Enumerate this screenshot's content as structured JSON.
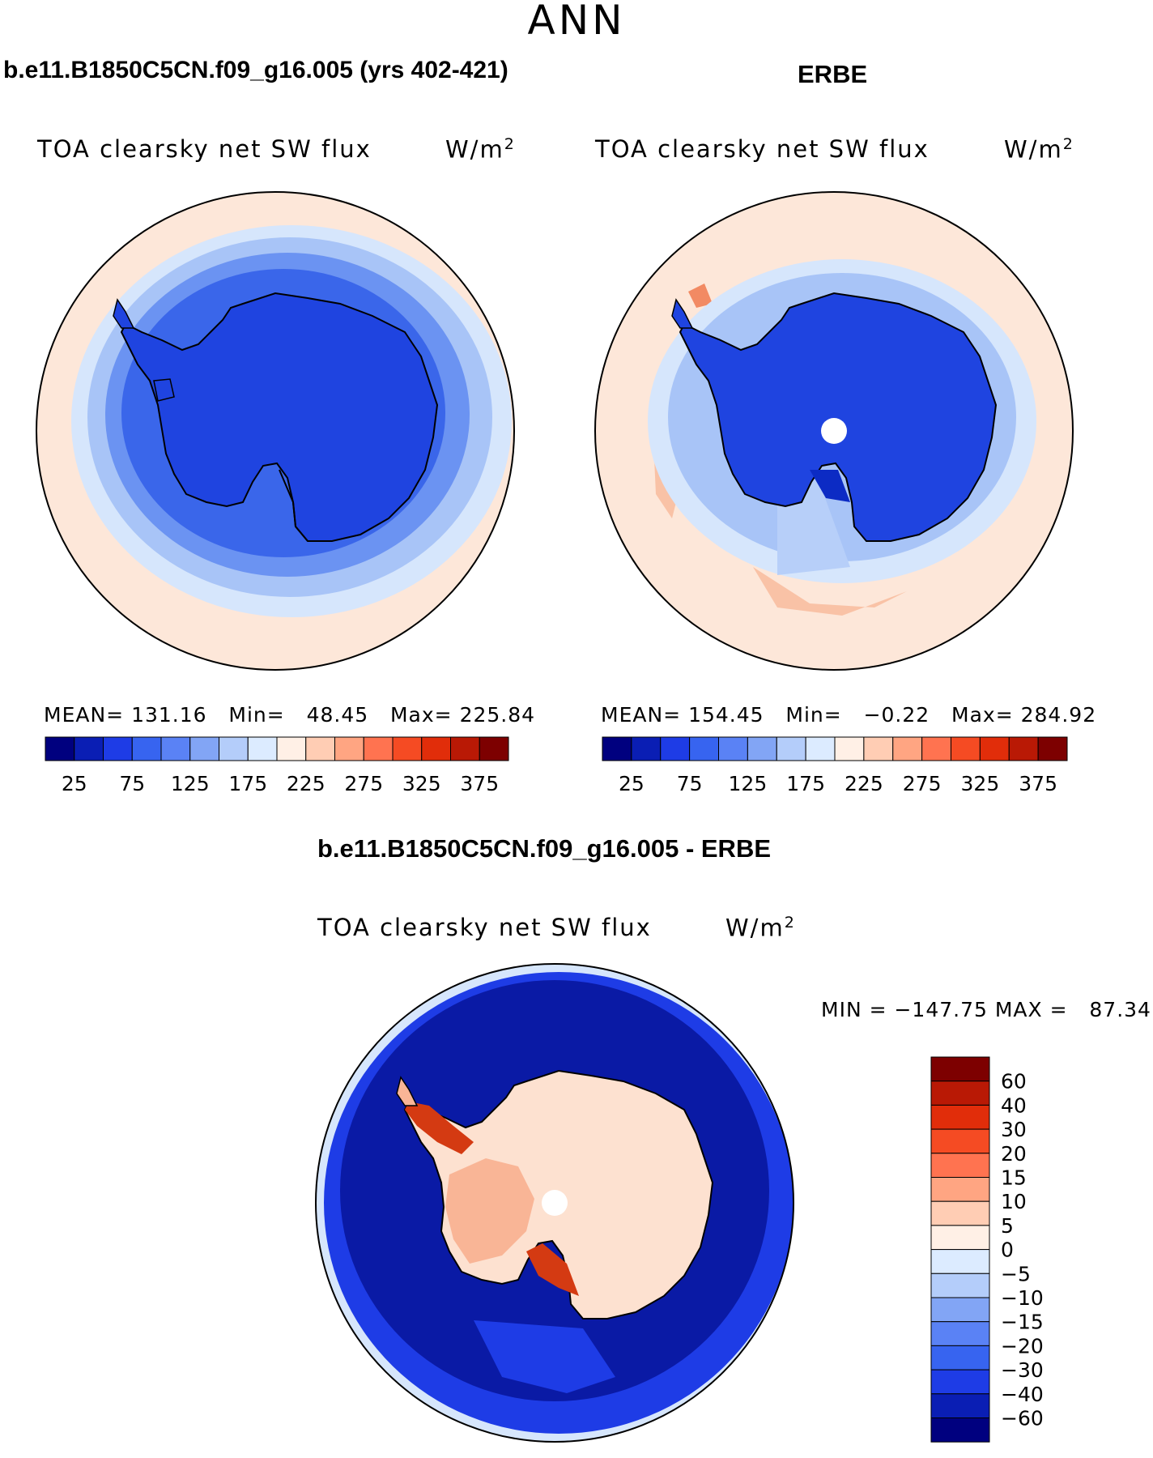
{
  "page_title": "ANN",
  "panels": [
    {
      "case_title": "b.e11.B1850C5CN.f09_g16.005 (yrs 402-421)",
      "variable": "TOA clearsky net SW flux",
      "units": "W/m",
      "units_exp": "2",
      "stats": {
        "mean_label": "MEAN=",
        "mean": "131.16",
        "min_label": "Min=",
        "min": "48.45",
        "max_label": "Max=",
        "max": "225.84"
      }
    },
    {
      "case_title": "ERBE",
      "variable": "TOA clearsky net SW flux",
      "units": "W/m",
      "units_exp": "2",
      "stats": {
        "mean_label": "MEAN=",
        "mean": "154.45",
        "min_label": "Min=",
        "min": "−0.22",
        "max_label": "Max=",
        "max": "284.92"
      }
    }
  ],
  "diff_panel": {
    "case_title": "b.e11.B1850C5CN.f09_g16.005 - ERBE",
    "variable": "TOA clearsky net SW flux",
    "units": "W/m",
    "units_exp": "2",
    "minmax": "MIN = −147.75 MAX =   87.34"
  },
  "colorbar_abs": {
    "colors": [
      "#00007f",
      "#0a1eb4",
      "#1e3ce6",
      "#3764f0",
      "#5a82f5",
      "#82a5f5",
      "#b4cdfa",
      "#dcebff",
      "#fff0e6",
      "#ffcdb4",
      "#ffa582",
      "#ff7350",
      "#f54b23",
      "#e12d0a",
      "#b91905",
      "#7d0000"
    ],
    "labels": [
      "25",
      "75",
      "125",
      "175",
      "225",
      "275",
      "325",
      "375"
    ]
  },
  "colorbar_diff": {
    "colors_top_to_bottom": [
      "#7d0000",
      "#b91905",
      "#e12d0a",
      "#f54b23",
      "#ff7350",
      "#ffa582",
      "#ffcdb4",
      "#fff0e6",
      "#dcebff",
      "#b4cdfa",
      "#82a5f5",
      "#5a82f5",
      "#3764f0",
      "#1e3ce6",
      "#0a1eb4",
      "#00007f"
    ],
    "labels": [
      "60",
      "40",
      "30",
      "20",
      "15",
      "10",
      "5",
      "0",
      "−5",
      "−10",
      "−15",
      "−20",
      "−30",
      "−40",
      "−60"
    ]
  },
  "colors": {
    "ocean_warm": "#fde7d9",
    "ring_light": "#d6e6fc",
    "ring_mid": "#a8c4f7",
    "ring_blue": "#6b93f2",
    "ring_deep": "#3a66ea",
    "continent_blue": "#1f44e0",
    "continent_deep": "#0c2bc4",
    "diff_ocean": "#0d2ac7",
    "diff_ocean_dark": "#0a1aa5",
    "diff_land": "#fde1d0",
    "diff_land_warm": "#f9b596",
    "diff_hot": "#d43a12"
  }
}
